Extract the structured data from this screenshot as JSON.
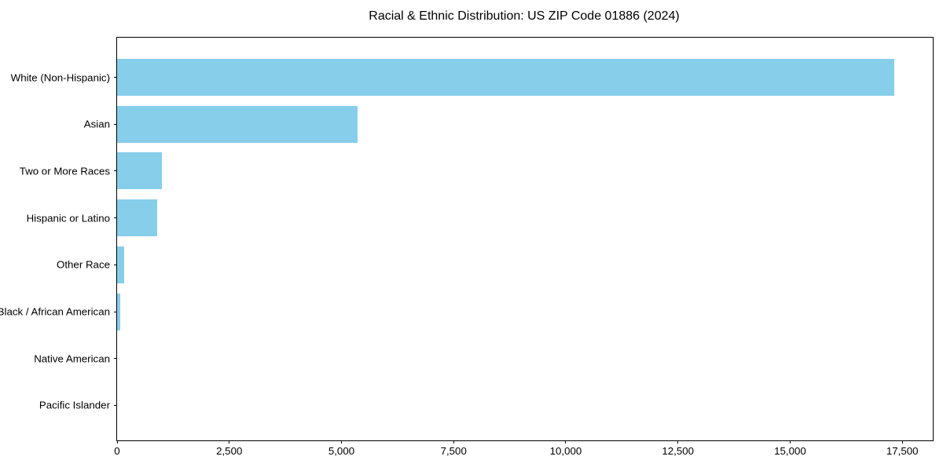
{
  "title": "Racial & Ethnic Distribution: US ZIP Code 01886 (2024)",
  "colors": {
    "bar": "#87CEEB",
    "axis": "#000000",
    "text": "#000000",
    "background": "#FFFFFF"
  },
  "chart_data": {
    "type": "bar",
    "orientation": "horizontal",
    "title": "Racial & Ethnic Distribution: US ZIP Code 01886 (2024)",
    "categories": [
      "White (Non-Hispanic)",
      "Asian",
      "Two or More Races",
      "Hispanic or Latino",
      "Other Race",
      "Black / African American",
      "Native American",
      "Pacific Islander"
    ],
    "values": [
      17320,
      5360,
      990,
      900,
      150,
      70,
      0,
      0
    ],
    "xlabel": "",
    "ylabel": "",
    "xlim": [
      0,
      18180
    ],
    "xticks": [
      0,
      2500,
      5000,
      7500,
      10000,
      12500,
      15000,
      17500
    ],
    "xtick_labels": [
      "0",
      "2,500",
      "5,000",
      "7,500",
      "10,000",
      "12,500",
      "15,000",
      "17,500"
    ],
    "grid": false,
    "legend": false,
    "bar_color": "#87CEEB"
  }
}
